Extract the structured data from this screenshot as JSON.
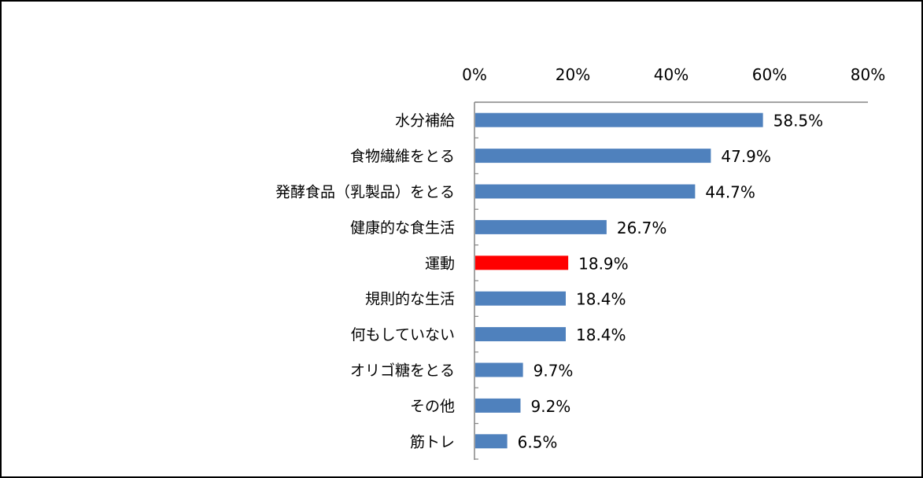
{
  "chart_data": {
    "type": "bar",
    "orientation": "horizontal",
    "title": "",
    "xlabel": "",
    "ylabel": "",
    "xlim": [
      0,
      80
    ],
    "ticks": [
      0,
      20,
      40,
      60,
      80
    ],
    "tick_labels": [
      "0%",
      "20%",
      "40%",
      "60%",
      "80%"
    ],
    "tick_position": "top",
    "grid": false,
    "legend": "none",
    "categories": [
      "水分補給",
      "食物繊維をとる",
      "発酵食品（乳製品）をとる",
      "健康的な食生活",
      "運動",
      "規則的な生活",
      "何もしていない",
      "オリゴ糖をとる",
      "その他",
      "筋トレ"
    ],
    "values": [
      58.5,
      47.9,
      44.7,
      26.7,
      18.9,
      18.4,
      18.4,
      9.7,
      9.2,
      6.5
    ],
    "value_labels": [
      "58.5%",
      "47.9%",
      "44.7%",
      "26.7%",
      "18.9%",
      "18.4%",
      "18.4%",
      "9.7%",
      "9.2%",
      "6.5%"
    ],
    "highlight_index": 4,
    "colors": {
      "bar": "#4f81bd",
      "highlight": "#ff0000",
      "axis": "#868686"
    }
  }
}
